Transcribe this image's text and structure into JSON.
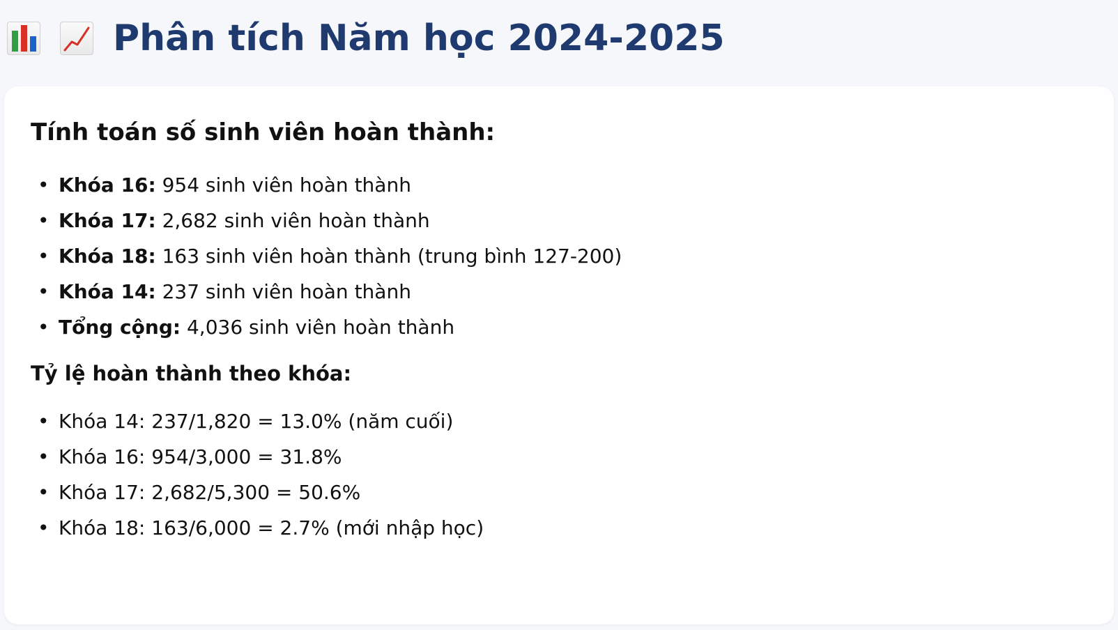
{
  "header": {
    "icons": [
      "bar-chart-icon",
      "chart-increasing-icon"
    ],
    "title": "Phân tích Năm học 2024-2025"
  },
  "completion": {
    "heading": "Tính toán số sinh viên hoàn thành:",
    "items": [
      {
        "label": "Khóa 16:",
        "text": " 954 sinh viên hoàn thành"
      },
      {
        "label": "Khóa 17:",
        "text": " 2,682 sinh viên hoàn thành"
      },
      {
        "label": "Khóa 18:",
        "text": " 163 sinh viên hoàn thành (trung bình 127-200)"
      },
      {
        "label": "Khóa 14:",
        "text": " 237 sinh viên hoàn thành"
      },
      {
        "label": "Tổng cộng:",
        "text": " 4,036 sinh viên hoàn thành"
      }
    ]
  },
  "rates": {
    "heading": "Tỷ lệ hoàn thành theo khóa:",
    "items": [
      "Khóa 14: 237/1,820 = 13.0% (năm cuối)",
      "Khóa 16: 954/3,000 = 31.8%",
      "Khóa 17: 2,682/5,300 = 50.6%",
      "Khóa 18: 163/6,000 = 2.7% (mới nhập học)"
    ]
  },
  "colors": {
    "title": "#1f3a6e",
    "page_background": "#f5f7fb",
    "card_background": "#ffffff"
  }
}
